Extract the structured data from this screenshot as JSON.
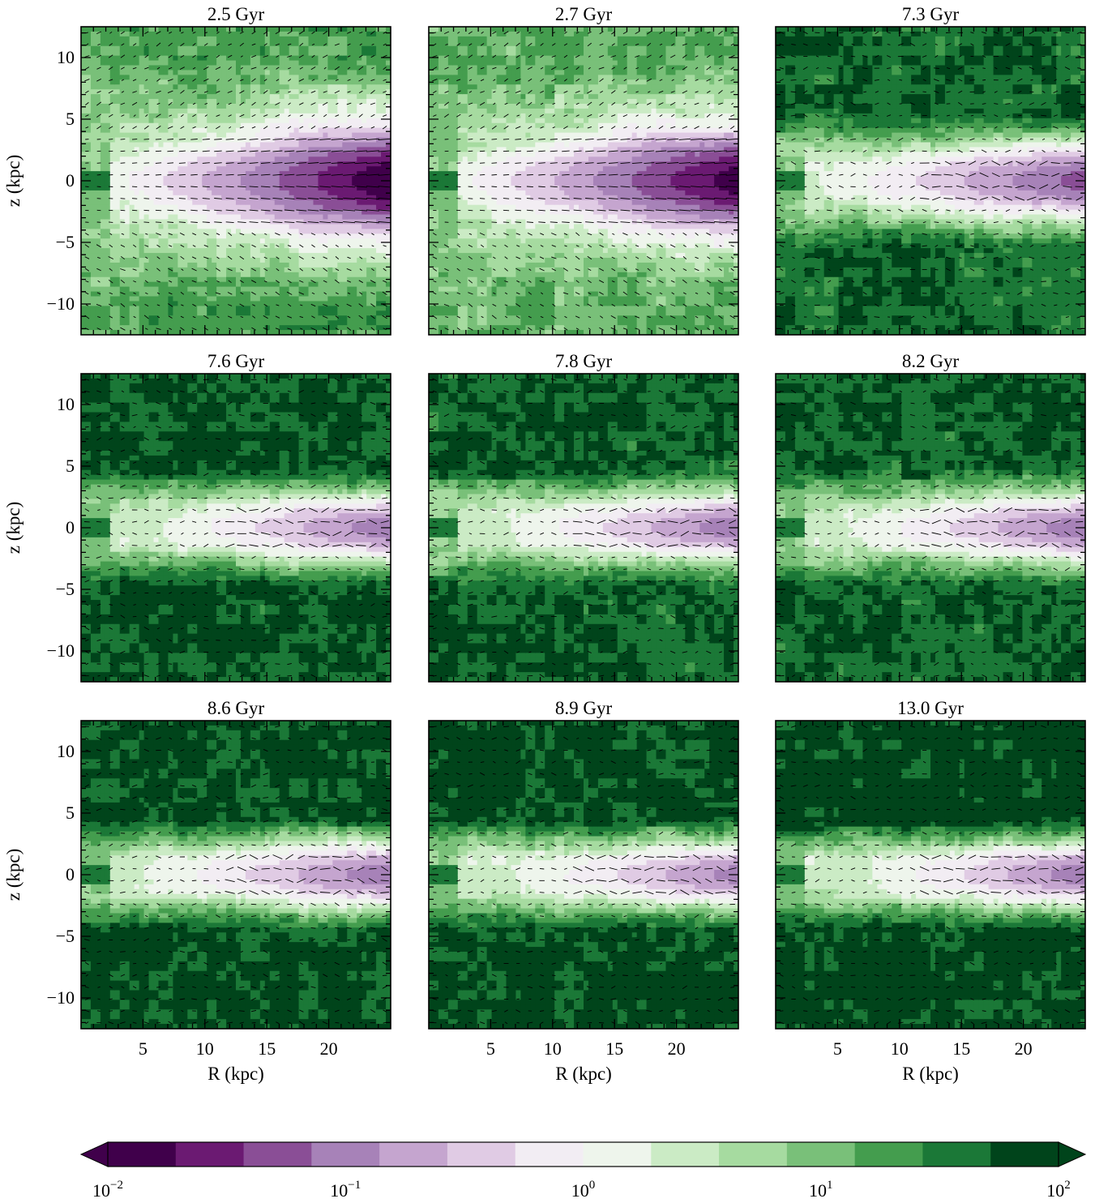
{
  "chart_data": {
    "type": "heatmap",
    "layout": {
      "rows": 3,
      "cols": 3,
      "sharex": true,
      "sharey": true
    },
    "xlabel": "R (kpc)",
    "ylabel": "z (kpc)",
    "xlim": [
      0,
      25
    ],
    "ylim": [
      -12.5,
      12.5
    ],
    "xticks": [
      5,
      10,
      15,
      20
    ],
    "yticks": [
      -10,
      -5,
      0,
      5,
      10
    ],
    "panels": [
      {
        "title": "2.5 Gyr",
        "disk_peak_log": -2.0,
        "disk_start_R": 5.5,
        "disk_width": 3.2,
        "halo_log": 0.9,
        "halo_extent": 9.0,
        "flow": "outflow-strong"
      },
      {
        "title": "2.7 Gyr",
        "disk_peak_log": -1.9,
        "disk_start_R": 5.0,
        "disk_width": 3.0,
        "halo_log": 0.75,
        "halo_extent": 8.0,
        "flow": "outflow-strong"
      },
      {
        "title": "7.3 Gyr",
        "disk_peak_log": -1.3,
        "disk_start_R": 8.0,
        "disk_width": 2.0,
        "halo_log": 1.3,
        "halo_extent": 4.0,
        "flow": "weak"
      },
      {
        "title": "7.6 Gyr",
        "disk_peak_log": -1.1,
        "disk_start_R": 11.0,
        "disk_width": 1.6,
        "halo_log": 1.4,
        "halo_extent": 3.5,
        "flow": "weak"
      },
      {
        "title": "7.8 Gyr",
        "disk_peak_log": -1.1,
        "disk_start_R": 11.0,
        "disk_width": 1.6,
        "halo_log": 1.35,
        "halo_extent": 3.5,
        "flow": "weak"
      },
      {
        "title": "8.2 Gyr",
        "disk_peak_log": -1.1,
        "disk_start_R": 10.5,
        "disk_width": 1.6,
        "halo_log": 1.35,
        "halo_extent": 3.5,
        "flow": "weak"
      },
      {
        "title": "8.6 Gyr",
        "disk_peak_log": -1.1,
        "disk_start_R": 9.5,
        "disk_width": 1.7,
        "halo_log": 1.45,
        "halo_extent": 3.3,
        "flow": "weak"
      },
      {
        "title": "8.9 Gyr",
        "disk_peak_log": -1.0,
        "disk_start_R": 11.5,
        "disk_width": 1.5,
        "halo_log": 1.45,
        "halo_extent": 3.3,
        "flow": "weak"
      },
      {
        "title": "13.0 Gyr",
        "disk_peak_log": -1.1,
        "disk_start_R": 12.5,
        "disk_width": 1.5,
        "halo_log": 1.5,
        "halo_extent": 3.2,
        "flow": "weak"
      }
    ],
    "colorbar": {
      "scale": "log",
      "range": [
        0.01,
        100
      ],
      "orientation": "horizontal",
      "extend": "both",
      "labels": [
        {
          "base": "10",
          "exp": "−2",
          "value": 0.01
        },
        {
          "base": "10",
          "exp": "−1",
          "value": 0.1
        },
        {
          "base": "10",
          "exp": "0",
          "value": 1
        },
        {
          "base": "10",
          "exp": "1",
          "value": 10
        },
        {
          "base": "10",
          "exp": "2",
          "value": 100
        }
      ],
      "colors": [
        "#40004b",
        "#6b1a72",
        "#8a4e96",
        "#a782b8",
        "#c5a5cf",
        "#e0cbe4",
        "#f2edf3",
        "#eef5ec",
        "#cbebc5",
        "#a6dba0",
        "#79c079",
        "#449d4e",
        "#1b7837",
        "#00441b"
      ]
    }
  }
}
